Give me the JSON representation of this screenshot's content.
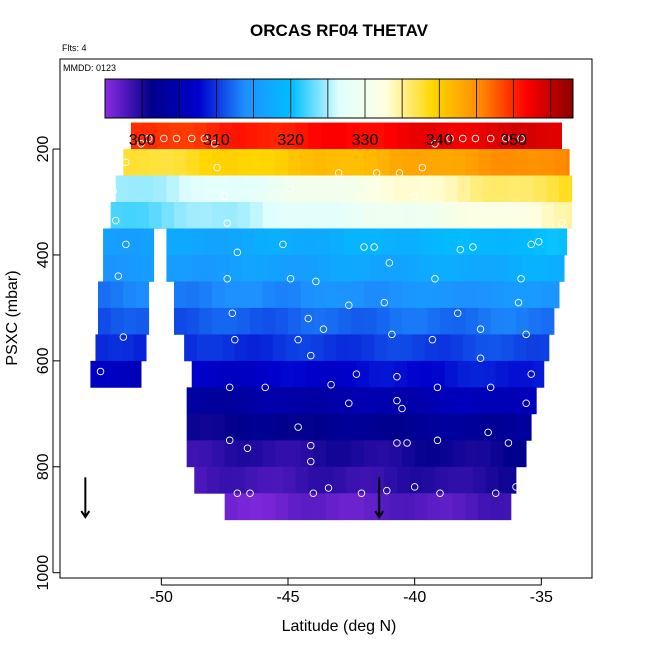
{
  "chart_data": {
    "type": "heatmap",
    "title": "ORCAS RF04 THETAV",
    "annotations": [
      "Flts: 4",
      "MMDD: 0123"
    ],
    "xlabel": "Latitude (deg N)",
    "ylabel": "PSXC (mbar)",
    "xlim": [
      -54,
      -33
    ],
    "ylim": [
      1010,
      30
    ],
    "y_inverted": true,
    "x_ticks": [
      -50,
      -45,
      -40,
      -35
    ],
    "x_tick_labels": [
      "-50",
      "-45",
      "-40",
      "-35"
    ],
    "y_ticks": [
      200,
      400,
      600,
      800,
      1000
    ],
    "y_tick_labels": [
      "200",
      "400",
      "600",
      "800",
      "1000"
    ],
    "colorbar": {
      "range": [
        295,
        358
      ],
      "ticks": [
        300,
        310,
        320,
        330,
        340,
        350
      ],
      "tick_labels": [
        "300",
        "310",
        "320",
        "330",
        "340",
        "350"
      ],
      "colors": [
        "#8a2be2",
        "#00008b",
        "#0000cd",
        "#1e90ff",
        "#00bfff",
        "#e0ffff",
        "#ffffe0",
        "#ffd700",
        "#ff8c00",
        "#ff0000",
        "#8b0000"
      ]
    },
    "level_rows": [
      {
        "p": 175,
        "lat_min": -51.2,
        "lat_max": -34.2,
        "theta_start": 349,
        "theta_end": 354
      },
      {
        "p": 225,
        "lat_min": -51.5,
        "lat_max": -33.9,
        "theta_start": 337,
        "theta_end": 346
      },
      {
        "p": 275,
        "lat_min": -51.8,
        "lat_max": -33.8,
        "theta_start": 324,
        "theta_end": 338
      },
      {
        "p": 325,
        "lat_min": -52.0,
        "lat_max": -33.8,
        "theta_start": 322,
        "theta_end": 334
      },
      {
        "p": 375,
        "lat_min": -52.3,
        "lat_max": -34.0,
        "theta_start": 316,
        "theta_end": 320,
        "gap": [
          -50.2,
          -49.7
        ]
      },
      {
        "p": 425,
        "lat_min": -52.3,
        "lat_max": -34.1,
        "theta_start": 315,
        "theta_end": 318,
        "gap": [
          -50.2,
          -49.6
        ]
      },
      {
        "p": 475,
        "lat_min": -52.5,
        "lat_max": -34.3,
        "theta_start": 313,
        "theta_end": 315,
        "gap": [
          -50.4,
          -49.4
        ]
      },
      {
        "p": 525,
        "lat_min": -52.5,
        "lat_max": -34.5,
        "theta_start": 311,
        "theta_end": 313,
        "gap": [
          -50.4,
          -49.4
        ]
      },
      {
        "p": 575,
        "lat_min": -52.6,
        "lat_max": -34.7,
        "theta_start": 309,
        "theta_end": 311,
        "gap": [
          -50.6,
          -49.2
        ]
      },
      {
        "p": 625,
        "lat_min": -52.8,
        "lat_max": -34.9,
        "theta_start": 306,
        "theta_end": 309,
        "gap": [
          -50.6,
          -49.0
        ]
      },
      {
        "p": 675,
        "lat_min": -49.0,
        "lat_max": -35.2,
        "theta_start": 303,
        "theta_end": 306
      },
      {
        "p": 725,
        "lat_min": -49.0,
        "lat_max": -35.4,
        "theta_start": 301,
        "theta_end": 303
      },
      {
        "p": 775,
        "lat_min": -49.0,
        "lat_max": -35.6,
        "theta_start": 299,
        "theta_end": 301
      },
      {
        "p": 825,
        "lat_min": -48.7,
        "lat_max": -36.0,
        "theta_start": 298,
        "theta_end": 300
      },
      {
        "p": 875,
        "lat_min": -47.5,
        "lat_max": -36.2,
        "theta_start": 296,
        "theta_end": 298
      }
    ],
    "sample_points": [
      [
        -50.8,
        190
      ],
      [
        -50.5,
        180
      ],
      [
        -49.9,
        180
      ],
      [
        -49.4,
        180
      ],
      [
        -48.8,
        180
      ],
      [
        -48.3,
        180
      ],
      [
        -47.9,
        190
      ],
      [
        -39.2,
        190
      ],
      [
        -38.6,
        180
      ],
      [
        -38.1,
        180
      ],
      [
        -37.6,
        180
      ],
      [
        -37.0,
        180
      ],
      [
        -36.4,
        180
      ],
      [
        -35.8,
        180
      ],
      [
        -51.4,
        225
      ],
      [
        -47.8,
        235
      ],
      [
        -43.0,
        245
      ],
      [
        -41.5,
        245
      ],
      [
        -40.6,
        245
      ],
      [
        -39.7,
        235
      ],
      [
        -51.9,
        280
      ],
      [
        -47.5,
        290
      ],
      [
        -44.9,
        275
      ],
      [
        -40.0,
        290
      ],
      [
        -51.8,
        335
      ],
      [
        -47.4,
        340
      ],
      [
        -34.2,
        340
      ],
      [
        -51.4,
        380
      ],
      [
        -47.0,
        395
      ],
      [
        -45.2,
        380
      ],
      [
        -42.0,
        385
      ],
      [
        -41.6,
        385
      ],
      [
        -41.0,
        415
      ],
      [
        -38.2,
        390
      ],
      [
        -37.7,
        385
      ],
      [
        -35.4,
        380
      ],
      [
        -35.1,
        375
      ],
      [
        -51.7,
        440
      ],
      [
        -47.4,
        445
      ],
      [
        -44.9,
        445
      ],
      [
        -43.9,
        450
      ],
      [
        -39.2,
        445
      ],
      [
        -35.8,
        445
      ],
      [
        -47.2,
        510
      ],
      [
        -44.2,
        520
      ],
      [
        -42.6,
        495
      ],
      [
        -41.2,
        490
      ],
      [
        -38.3,
        510
      ],
      [
        -35.9,
        490
      ],
      [
        -51.5,
        555
      ],
      [
        -47.1,
        560
      ],
      [
        -44.6,
        560
      ],
      [
        -43.6,
        540
      ],
      [
        -40.9,
        550
      ],
      [
        -39.3,
        560
      ],
      [
        -37.4,
        540
      ],
      [
        -35.6,
        550
      ],
      [
        -44.1,
        590
      ],
      [
        -37.4,
        595
      ],
      [
        -52.4,
        620
      ],
      [
        -47.3,
        650
      ],
      [
        -45.9,
        650
      ],
      [
        -43.3,
        645
      ],
      [
        -42.3,
        625
      ],
      [
        -40.7,
        630
      ],
      [
        -39.1,
        650
      ],
      [
        -37.0,
        650
      ],
      [
        -35.4,
        625
      ],
      [
        -42.6,
        680
      ],
      [
        -40.7,
        675
      ],
      [
        -40.5,
        690
      ],
      [
        -35.6,
        680
      ],
      [
        -47.3,
        750
      ],
      [
        -44.6,
        725
      ],
      [
        -44.1,
        760
      ],
      [
        -40.7,
        755
      ],
      [
        -40.3,
        755
      ],
      [
        -39.1,
        750
      ],
      [
        -37.1,
        735
      ],
      [
        -36.3,
        755
      ],
      [
        -46.6,
        765
      ],
      [
        -44.1,
        790
      ],
      [
        -47.0,
        850
      ],
      [
        -46.5,
        850
      ],
      [
        -44.0,
        850
      ],
      [
        -43.4,
        840
      ],
      [
        -42.1,
        850
      ],
      [
        -41.1,
        845
      ],
      [
        -40.0,
        838
      ],
      [
        -39.0,
        850
      ],
      [
        -36.8,
        850
      ],
      [
        -36.0,
        838
      ]
    ],
    "arrows": [
      {
        "lat": -53.0,
        "p_top": 820,
        "p_bottom": 895
      },
      {
        "lat": -41.4,
        "p_top": 820,
        "p_bottom": 895
      }
    ]
  }
}
